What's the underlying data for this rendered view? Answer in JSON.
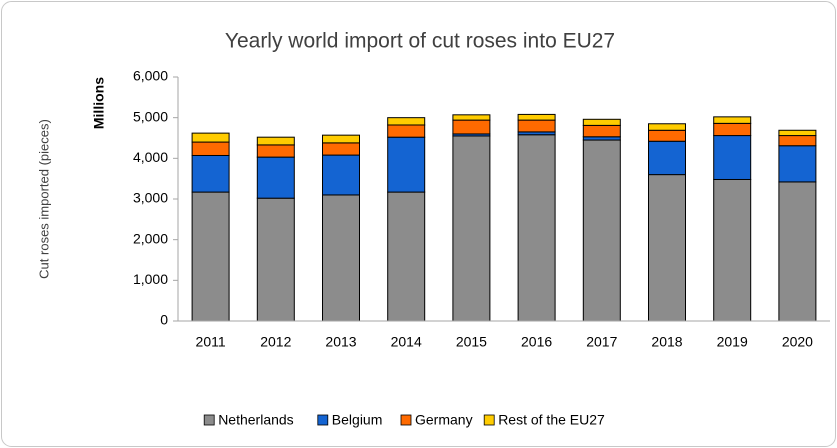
{
  "chart_data": {
    "type": "stacked_bar",
    "title": "Yearly world import of cut roses into EU27",
    "y_label": "Cut roses imported (pieces)",
    "y_unit_label": "Millions",
    "categories": [
      "2011",
      "2012",
      "2013",
      "2014",
      "2015",
      "2016",
      "2017",
      "2018",
      "2019",
      "2020"
    ],
    "series": [
      {
        "name": "Netherlands",
        "color": "#8c8c8c",
        "values": [
          3170,
          3020,
          3100,
          3170,
          4550,
          4580,
          4450,
          3600,
          3480,
          3420
        ]
      },
      {
        "name": "Belgium",
        "color": "#1464d2",
        "values": [
          900,
          1010,
          980,
          1350,
          50,
          70,
          80,
          820,
          1080,
          890
        ]
      },
      {
        "name": "Germany",
        "color": "#ff6a00",
        "values": [
          330,
          300,
          300,
          300,
          340,
          290,
          280,
          270,
          300,
          250
        ]
      },
      {
        "name": "Rest of the EU27",
        "color": "#ffcc00",
        "values": [
          220,
          190,
          190,
          180,
          130,
          140,
          150,
          160,
          160,
          130
        ]
      }
    ],
    "ylim": [
      0,
      6000
    ],
    "yticks": [
      0,
      {
        "value": 1000,
        "label": "1,000"
      },
      {
        "value": 2000,
        "label": "2,000"
      },
      {
        "value": 3000,
        "label": "3,000"
      },
      {
        "value": 4000,
        "label": "4,000"
      },
      {
        "value": 5000,
        "label": "5,000"
      },
      {
        "value": 6000,
        "label": "6,000"
      }
    ],
    "legend": "bottom"
  }
}
